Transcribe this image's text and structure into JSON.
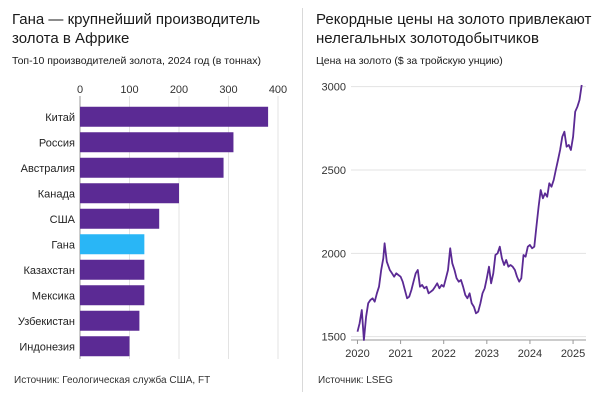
{
  "left_panel": {
    "title_line1": "Гана — крупнейший производитель",
    "title_line2": "золота в Африке",
    "subtitle": "Топ-10 производителей золота, 2024 год (в тоннах)",
    "source": "Источник: Геологическая служба США, FT"
  },
  "right_panel": {
    "title_line1": "Рекордные цены на золото привлекают",
    "title_line2": "нелегальных золотодобытчиков",
    "subtitle": "Цена на золото ($ за тройскую унцию)",
    "source": "Источник: LSEG"
  },
  "colors": {
    "bar": "#5b2a94",
    "highlight": "#29b6f6",
    "line": "#5b2a94",
    "grid": "#e3e3e3"
  },
  "chart_data": [
    {
      "type": "bar",
      "orientation": "horizontal",
      "title": "Гана — крупнейший производитель золота в Африке",
      "subtitle": "Топ-10 производителей золота, 2024 год (в тоннах)",
      "categories": [
        "Китай",
        "Россия",
        "Австралия",
        "Канада",
        "США",
        "Гана",
        "Казахстан",
        "Мексика",
        "Узбекистан",
        "Индонезия"
      ],
      "values": [
        380,
        310,
        290,
        200,
        160,
        130,
        130,
        130,
        120,
        100
      ],
      "highlight": "Гана",
      "xlim": [
        0,
        400
      ],
      "xticks": [
        0,
        100,
        200,
        300,
        400
      ],
      "tick_labels": [
        "0",
        "100",
        "200",
        "300",
        "400"
      ],
      "axis_position": "top",
      "grid": true
    },
    {
      "type": "line",
      "title": "Рекордные цены на золото привлекают нелегальных золотодобытчиков",
      "subtitle": "Цена на золото ($ за тройскую унцию)",
      "x": [
        2020.0,
        2020.05,
        2020.1,
        2020.15,
        2020.2,
        2020.25,
        2020.3,
        2020.35,
        2020.4,
        2020.45,
        2020.5,
        2020.55,
        2020.6,
        2020.63,
        2020.68,
        2020.75,
        2020.8,
        2020.85,
        2020.9,
        2020.95,
        2021.0,
        2021.05,
        2021.1,
        2021.15,
        2021.2,
        2021.25,
        2021.3,
        2021.35,
        2021.4,
        2021.45,
        2021.5,
        2021.55,
        2021.6,
        2021.65,
        2021.7,
        2021.75,
        2021.8,
        2021.85,
        2021.9,
        2021.95,
        2022.0,
        2022.05,
        2022.1,
        2022.15,
        2022.2,
        2022.25,
        2022.3,
        2022.35,
        2022.4,
        2022.45,
        2022.5,
        2022.55,
        2022.6,
        2022.65,
        2022.7,
        2022.75,
        2022.8,
        2022.85,
        2022.9,
        2022.95,
        2023.0,
        2023.05,
        2023.1,
        2023.15,
        2023.2,
        2023.25,
        2023.3,
        2023.35,
        2023.4,
        2023.45,
        2023.5,
        2023.55,
        2023.6,
        2023.65,
        2023.7,
        2023.75,
        2023.8,
        2023.85,
        2023.9,
        2023.95,
        2024.0,
        2024.05,
        2024.1,
        2024.15,
        2024.2,
        2024.25,
        2024.3,
        2024.35,
        2024.4,
        2024.45,
        2024.5,
        2024.55,
        2024.6,
        2024.65,
        2024.7,
        2024.75,
        2024.8,
        2024.85,
        2024.9,
        2024.95,
        2025.0,
        2025.05,
        2025.1,
        2025.15,
        2025.2
      ],
      "values": [
        1530,
        1580,
        1660,
        1480,
        1620,
        1700,
        1720,
        1730,
        1710,
        1760,
        1800,
        1900,
        1970,
        2060,
        1950,
        1900,
        1880,
        1860,
        1880,
        1870,
        1860,
        1830,
        1780,
        1730,
        1740,
        1780,
        1830,
        1880,
        1900,
        1800,
        1810,
        1790,
        1800,
        1760,
        1770,
        1780,
        1800,
        1820,
        1790,
        1810,
        1800,
        1850,
        1900,
        2030,
        1940,
        1900,
        1850,
        1830,
        1840,
        1800,
        1750,
        1730,
        1760,
        1700,
        1680,
        1640,
        1650,
        1700,
        1760,
        1790,
        1850,
        1920,
        1820,
        1880,
        1990,
        2000,
        2040,
        1970,
        1930,
        1960,
        1920,
        1930,
        1920,
        1900,
        1860,
        1830,
        1850,
        1990,
        1980,
        2040,
        2050,
        2030,
        2040,
        2160,
        2280,
        2380,
        2330,
        2360,
        2340,
        2420,
        2400,
        2440,
        2500,
        2560,
        2620,
        2700,
        2730,
        2640,
        2650,
        2620,
        2700,
        2850,
        2880,
        2920,
        3010
      ],
      "xlim": [
        2019.85,
        2025.3
      ],
      "ylim": [
        1480,
        3040
      ],
      "xticks": [
        2020,
        2021,
        2022,
        2023,
        2024,
        2025
      ],
      "xtick_labels": [
        "2020",
        "2021",
        "2022",
        "2023",
        "2024",
        "2025"
      ],
      "yticks": [
        1500,
        2000,
        2500,
        3000
      ],
      "ytick_labels": [
        "1500",
        "2000",
        "2500",
        "3000"
      ],
      "grid": true
    }
  ]
}
